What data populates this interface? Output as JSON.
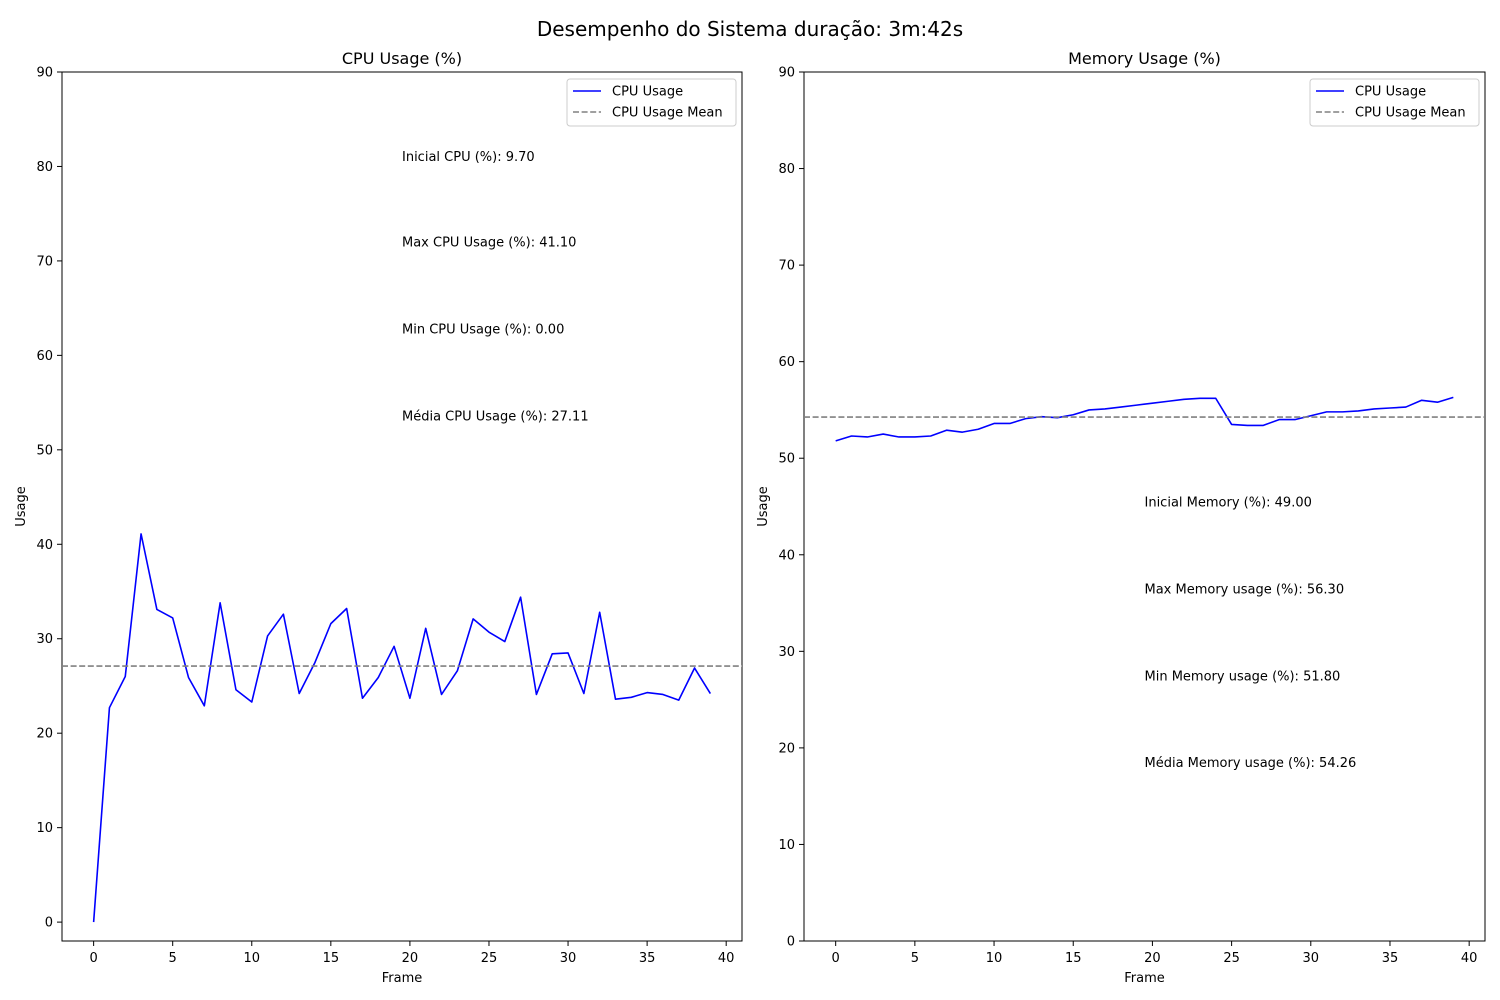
{
  "suptitle": "Desempenho do Sistema duração: 3m:42s",
  "colors": {
    "series": "#0000ff",
    "mean": "#808080"
  },
  "chart_data": [
    {
      "type": "line",
      "title": "CPU Usage (%)",
      "xlabel": "Frame",
      "ylabel": "Usage",
      "xlim": [
        -2,
        41
      ],
      "ylim": [
        -2,
        90
      ],
      "xticks": [
        0,
        5,
        10,
        15,
        20,
        25,
        30,
        35,
        40
      ],
      "yticks": [
        0,
        10,
        20,
        30,
        40,
        50,
        60,
        70,
        80,
        90
      ],
      "grid": false,
      "legend_position": "top-right",
      "series": [
        {
          "name": "CPU Usage",
          "style": "solid",
          "color": "#0000ff",
          "x": [
            0,
            1,
            2,
            3,
            4,
            5,
            6,
            7,
            8,
            9,
            10,
            11,
            12,
            13,
            14,
            15,
            16,
            17,
            18,
            19,
            20,
            21,
            22,
            23,
            24,
            25,
            26,
            27,
            28,
            29,
            30,
            31,
            32,
            33,
            34,
            35,
            36,
            37,
            38,
            39
          ],
          "values": [
            0.0,
            22.7,
            26.0,
            41.1,
            33.1,
            32.2,
            25.9,
            22.9,
            33.8,
            24.6,
            23.3,
            30.3,
            32.6,
            24.2,
            27.5,
            31.6,
            33.2,
            23.7,
            25.9,
            29.2,
            23.7,
            31.1,
            24.1,
            26.6,
            32.1,
            30.7,
            29.7,
            34.4,
            24.1,
            28.4,
            28.5,
            24.2,
            32.8,
            23.6,
            23.8,
            24.3,
            24.1,
            23.5,
            26.9,
            24.2
          ]
        },
        {
          "name": "CPU Usage Mean",
          "style": "dashed",
          "color": "#808080",
          "constant": 27.11
        }
      ],
      "annotations": [
        {
          "text": "Inicial CPU (%): 9.70",
          "x": 19.5,
          "y": 80.6
        },
        {
          "text": "Max CPU Usage (%): 41.10",
          "x": 19.5,
          "y": 71.5
        },
        {
          "text": "Min CPU Usage (%): 0.00",
          "x": 19.5,
          "y": 62.3
        },
        {
          "text": "Média CPU Usage (%): 27.11",
          "x": 19.5,
          "y": 53.1
        }
      ]
    },
    {
      "type": "line",
      "title": "Memory Usage (%)",
      "xlabel": "Frame",
      "ylabel": "Usage",
      "xlim": [
        -2,
        41
      ],
      "ylim": [
        0,
        90
      ],
      "xticks": [
        0,
        5,
        10,
        15,
        20,
        25,
        30,
        35,
        40
      ],
      "yticks": [
        0,
        10,
        20,
        30,
        40,
        50,
        60,
        70,
        80,
        90
      ],
      "grid": false,
      "legend_position": "top-right",
      "series": [
        {
          "name": "CPU Usage",
          "style": "solid",
          "color": "#0000ff",
          "x": [
            0,
            1,
            2,
            3,
            4,
            5,
            6,
            7,
            8,
            9,
            10,
            11,
            12,
            13,
            14,
            15,
            16,
            17,
            18,
            19,
            20,
            21,
            22,
            23,
            24,
            25,
            26,
            27,
            28,
            29,
            30,
            31,
            32,
            33,
            34,
            35,
            36,
            37,
            38,
            39
          ],
          "values": [
            51.8,
            52.3,
            52.2,
            52.5,
            52.2,
            52.2,
            52.3,
            52.9,
            52.7,
            53.0,
            53.6,
            53.6,
            54.1,
            54.3,
            54.2,
            54.5,
            55.0,
            55.1,
            55.3,
            55.5,
            55.7,
            55.9,
            56.1,
            56.2,
            56.2,
            53.5,
            53.4,
            53.4,
            54.0,
            54.0,
            54.4,
            54.8,
            54.8,
            54.9,
            55.1,
            55.2,
            55.3,
            56.0,
            55.8,
            56.3
          ]
        },
        {
          "name": "CPU Usage Mean",
          "style": "dashed",
          "color": "#808080",
          "constant": 54.26
        }
      ],
      "annotations": [
        {
          "text": "Inicial Memory (%): 49.00",
          "x": 19.5,
          "y": 45.0
        },
        {
          "text": "Max Memory usage (%): 56.30",
          "x": 19.5,
          "y": 36.0
        },
        {
          "text": "Min Memory usage (%): 51.80",
          "x": 19.5,
          "y": 27.0
        },
        {
          "text": "Média Memory usage (%): 54.26",
          "x": 19.5,
          "y": 18.0
        }
      ]
    }
  ]
}
